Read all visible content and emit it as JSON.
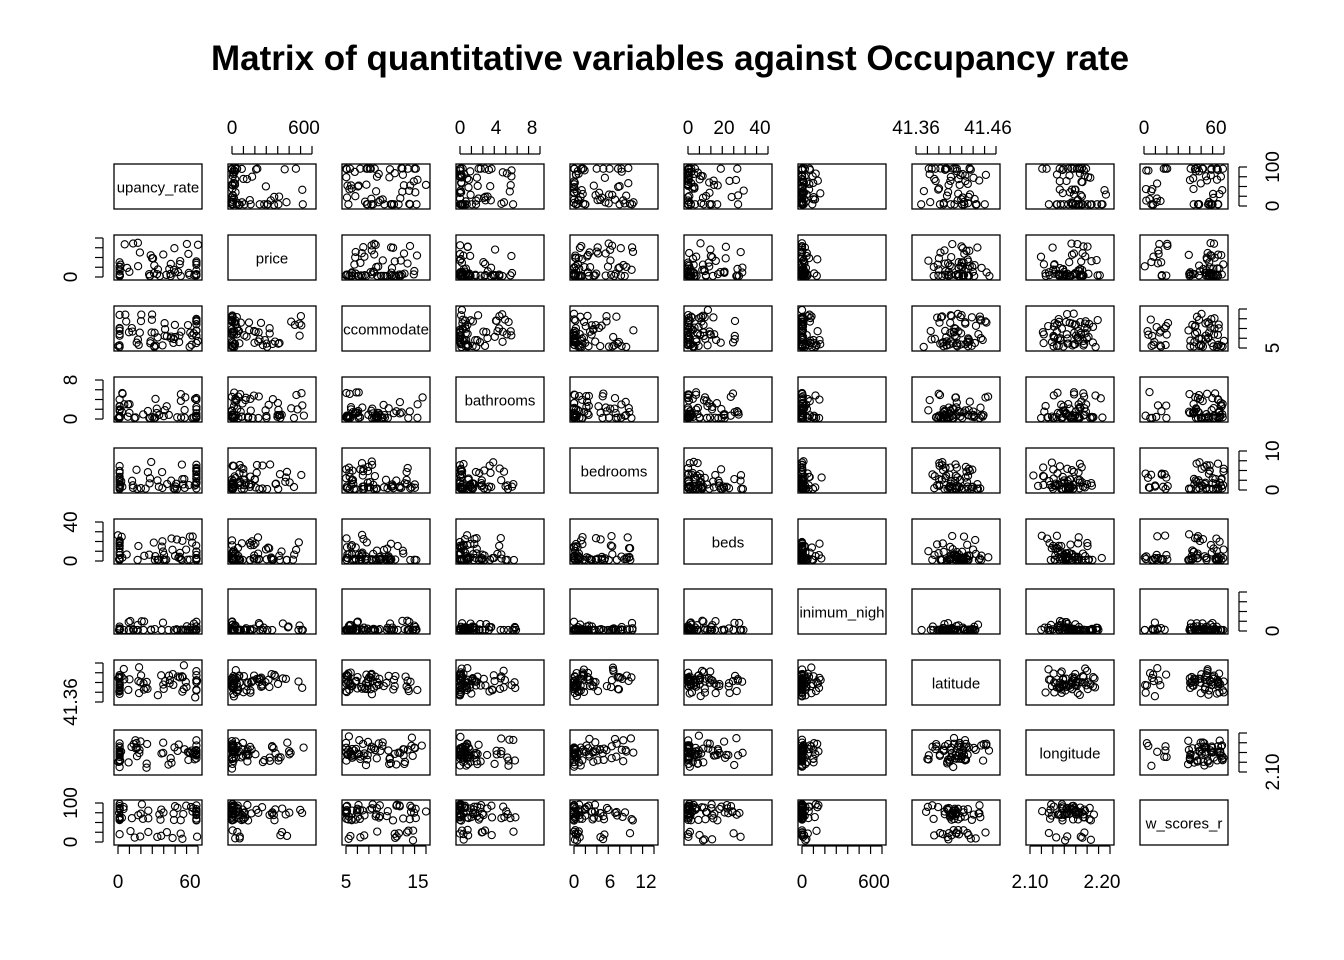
{
  "chart_data": {
    "type": "scatter",
    "title": "Matrix of quantitative variables against Occupancy rate",
    "panel_layout": "10x10 scatterplot matrix",
    "variables": [
      {
        "label": "upancy_rate",
        "range": [
          0,
          100
        ],
        "ticks": [
          0,
          60
        ],
        "right_ticks": [
          0,
          100
        ]
      },
      {
        "label": "price",
        "range": [
          0,
          1000
        ],
        "ticks": [
          0,
          600
        ],
        "left_ticks": [
          0
        ]
      },
      {
        "label": "ccommodate",
        "range": [
          1,
          16
        ],
        "ticks": [
          5,
          15
        ],
        "right_ticks": [
          5
        ]
      },
      {
        "label": "bathrooms",
        "range": [
          0,
          10
        ],
        "ticks": [
          0,
          4,
          8
        ],
        "left_ticks": [
          0,
          8
        ]
      },
      {
        "label": "bedrooms",
        "range": [
          0,
          14
        ],
        "ticks": [
          0,
          6,
          12
        ],
        "right_ticks": [
          0,
          10
        ]
      },
      {
        "label": "beds",
        "range": [
          0,
          42
        ],
        "ticks": [
          0,
          20,
          40
        ],
        "left_ticks": [
          0,
          40
        ]
      },
      {
        "label": "inimum_nigh",
        "range": [
          0,
          1000
        ],
        "ticks": [
          0,
          600
        ],
        "right_ticks": [
          0
        ]
      },
      {
        "label": "latitude",
        "range": [
          41.33,
          41.47
        ],
        "ticks": [
          41.36,
          41.46
        ],
        "left_ticks": [
          41.36
        ]
      },
      {
        "label": "longitude",
        "range": [
          2.08,
          2.24
        ],
        "ticks": [
          2.1,
          2.2
        ],
        "right_ticks": [
          2.1
        ]
      },
      {
        "label": "w_scores_r",
        "range": [
          0,
          100
        ],
        "ticks": [
          0,
          60
        ]
      }
    ],
    "tick_text": {
      "upancy_rate": [
        "0",
        "60"
      ],
      "upancy_rate_right": [
        "0",
        "100"
      ],
      "price_top": [
        "0",
        "600"
      ],
      "price_left": [
        "0"
      ],
      "accommodates_bottom": [
        "5",
        "15"
      ],
      "accommodates_right": [
        "5"
      ],
      "bathrooms_top": [
        "0",
        "4",
        "8"
      ],
      "bathrooms_left": [
        "0",
        "8"
      ],
      "bedrooms_bottom": [
        "0",
        "6",
        "12"
      ],
      "bedrooms_right": [
        "0",
        "10"
      ],
      "beds_top": [
        "0",
        "20",
        "40"
      ],
      "beds_left": [
        "0",
        "40"
      ],
      "minimum_nights_bottom": [
        "0",
        "600"
      ],
      "minimum_nights_right": [
        "0"
      ],
      "latitude_top": [
        "41.36",
        "41.46"
      ],
      "latitude_left": [
        "41.36"
      ],
      "longitude_bottom": [
        "2.10",
        "2.20"
      ],
      "longitude_right": [
        "2.10"
      ],
      "review_scores_top": [
        "0",
        "60"
      ],
      "review_scores_left": [
        "0",
        "100"
      ]
    },
    "grid": false,
    "legend": "none"
  }
}
